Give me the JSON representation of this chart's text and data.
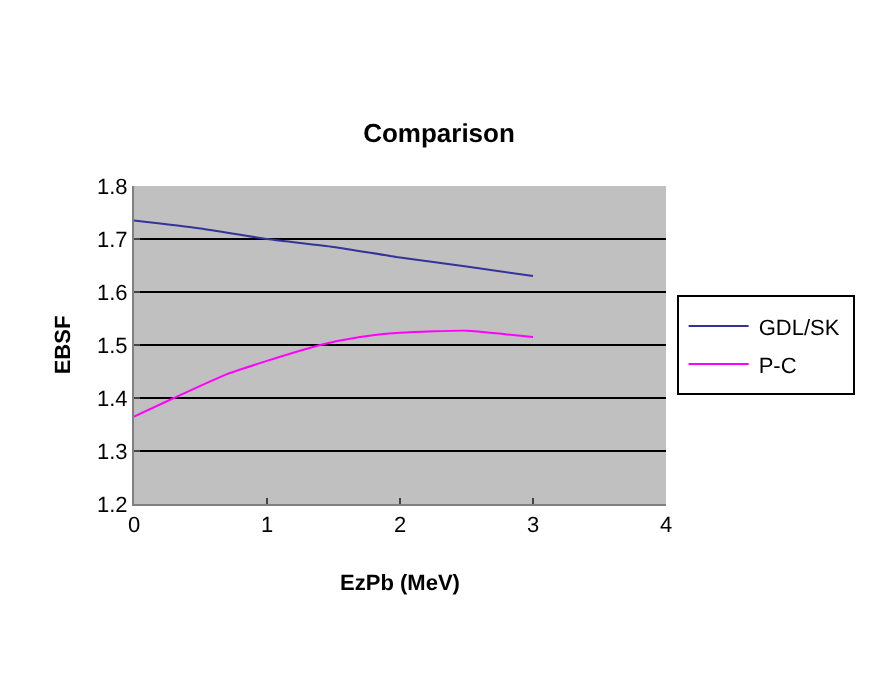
{
  "chart_data": {
    "type": "line",
    "title": "Comparison",
    "xlabel": "EzPb (MeV)",
    "ylabel": "EBSF",
    "xlim": [
      0,
      4
    ],
    "xticks": [
      0,
      1,
      2,
      3,
      4
    ],
    "ylim": [
      1.2,
      1.8
    ],
    "yticks": [
      1.2,
      1.3,
      1.4,
      1.5,
      1.6,
      1.7,
      1.8
    ],
    "grid": "y",
    "legend": "right",
    "marker": "none",
    "line_style": "solid",
    "series": [
      {
        "name": "GDL/SK",
        "color": "#333399",
        "x": [
          0,
          0.5,
          1,
          1.5,
          2,
          2.5,
          3
        ],
        "values": [
          1.735,
          1.72,
          1.7,
          1.685,
          1.665,
          1.648,
          1.63
        ]
      },
      {
        "name": "P-C",
        "color": "#ff00ff",
        "x": [
          0,
          0.3,
          0.7,
          1,
          1.4,
          1.7,
          2,
          2.5,
          2.8,
          3
        ],
        "values": [
          1.365,
          1.4,
          1.445,
          1.47,
          1.5,
          1.515,
          1.523,
          1.527,
          1.52,
          1.515
        ]
      }
    ]
  }
}
